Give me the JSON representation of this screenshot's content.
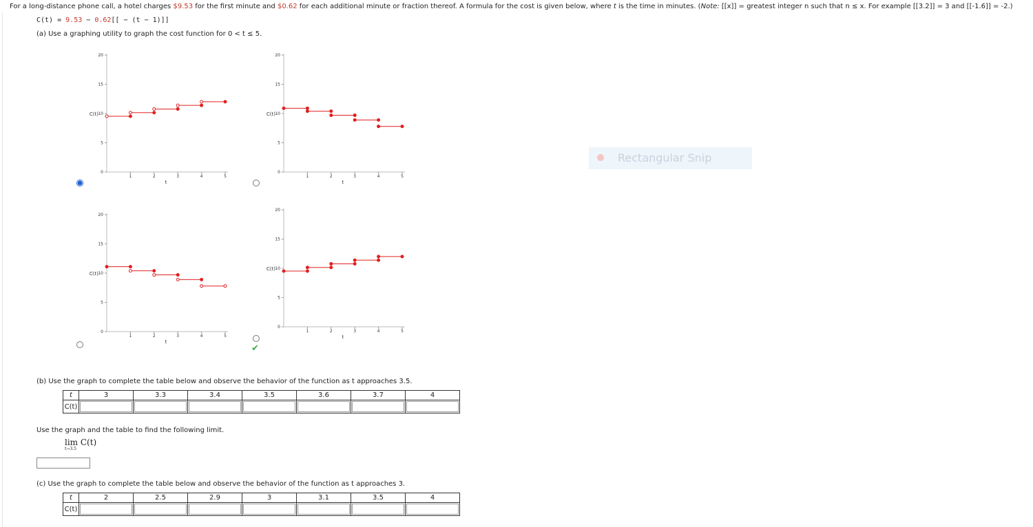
{
  "problem": {
    "intro_a": "For a long-distance phone call, a hotel charges ",
    "first_minute": "$9.53",
    "intro_b": " for the first minute and ",
    "each_additional": "$0.62",
    "intro_c": " for each additional minute or fraction thereof. A formula for the cost is given below, where ",
    "var_t": "t",
    "intro_d": " is the time in minutes. (",
    "note_label": "Note:",
    "note_text": " [[x]] = greatest integer n such that n ≤ x. For example [[3.2]] = 3 and [[-1.6]] = -2.)",
    "formula_lhs": "C(t) = ",
    "formula_a": "9.53",
    "formula_mid": " − ",
    "formula_b": "0.62",
    "formula_rest": "[[ − (t − 1)]]",
    "part_a": "(a) Use a graphing utility to graph the cost function for 0 < t ≤ 5."
  },
  "graphs": {
    "y_label": "C(t)",
    "x_label": "t",
    "x_ticks": [
      "1",
      "2",
      "3",
      "4",
      "5"
    ],
    "y_ticks": [
      "0",
      "5",
      "10",
      "15",
      "20"
    ],
    "options": [
      {
        "id": "A",
        "selected": true
      },
      {
        "id": "B",
        "selected": false
      },
      {
        "id": "C",
        "selected": false
      },
      {
        "id": "D",
        "selected": false,
        "correct": true
      }
    ]
  },
  "part_b": {
    "instruction": "(b) Use the graph to complete the table below and observe the behavior of the function as t approaches 3.5.",
    "row_t": "t",
    "row_c": "C(t)",
    "t_values": [
      "3",
      "3.3",
      "3.4",
      "3.5",
      "3.6",
      "3.7",
      "4"
    ],
    "limit_instruction": "Use the graph and the table to find the following limit.",
    "limit_expr": "lim  C(t)",
    "limit_sub": "t→3.5"
  },
  "part_c": {
    "instruction": "(c) Use the graph to complete the table below and observe the behavior of the function as t approaches 3.",
    "row_t": "t",
    "row_c": "C(t)",
    "t_values": [
      "2",
      "2.5",
      "2.9",
      "3",
      "3.1",
      "3.5",
      "4"
    ]
  },
  "overlay": {
    "snip_label": "Rectangular Snip"
  },
  "colors": {
    "series": "#e02020",
    "accent_red": "#c0392b",
    "check": "#3cae4b",
    "radio_selected": "#1a5fd1"
  },
  "chart_data": [
    {
      "type": "line",
      "title": "",
      "xlabel": "t",
      "ylabel": "C(t)",
      "xlim": [
        0,
        5
      ],
      "ylim": [
        0,
        20
      ],
      "series": [
        {
          "segments": [
            [
              0,
              1,
              9.53
            ],
            [
              1,
              2,
              10.15
            ],
            [
              2,
              3,
              10.77
            ],
            [
              3,
              4,
              11.39
            ],
            [
              4,
              5,
              12.01
            ]
          ]
        }
      ]
    },
    {
      "type": "line",
      "title": "",
      "xlabel": "t",
      "ylabel": "C(t)",
      "xlim": [
        0,
        5
      ],
      "ylim": [
        0,
        20
      ],
      "series": [
        {
          "segments": [
            [
              0,
              1,
              10.9
            ],
            [
              1,
              2,
              10.4
            ],
            [
              2,
              3,
              9.7
            ],
            [
              3,
              4,
              8.9
            ],
            [
              4,
              5,
              7.8
            ]
          ]
        }
      ]
    },
    {
      "type": "line",
      "title": "",
      "xlabel": "t",
      "ylabel": "C(t)",
      "xlim": [
        0,
        5
      ],
      "ylim": [
        0,
        20
      ],
      "series": [
        {
          "segments": [
            [
              0,
              1,
              11.1
            ],
            [
              1,
              2,
              10.4
            ],
            [
              2,
              3,
              9.7
            ],
            [
              3,
              4,
              8.9
            ],
            [
              4,
              5,
              7.8
            ]
          ]
        }
      ]
    },
    {
      "type": "line",
      "title": "",
      "xlabel": "t",
      "ylabel": "C(t)",
      "xlim": [
        0,
        5
      ],
      "ylim": [
        0,
        20
      ],
      "series": [
        {
          "segments": [
            [
              0,
              1,
              9.53
            ],
            [
              1,
              2,
              10.15
            ],
            [
              2,
              3,
              10.77
            ],
            [
              3,
              4,
              11.39
            ],
            [
              4,
              5,
              12.01
            ]
          ]
        }
      ]
    }
  ]
}
